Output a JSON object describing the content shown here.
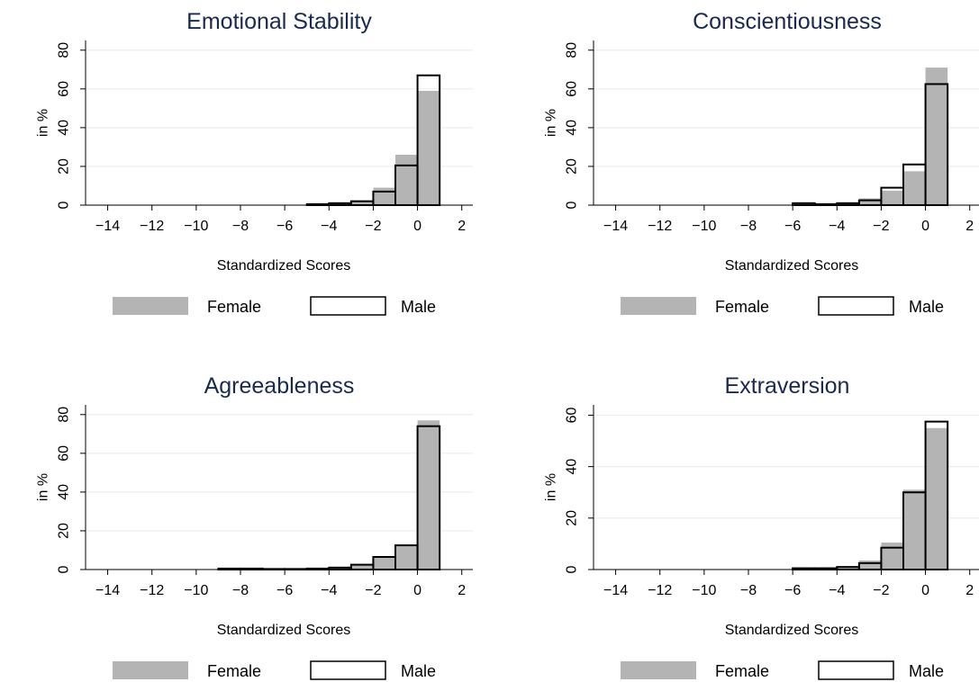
{
  "colors": {
    "female_fill": "#b4b4b4",
    "male_stroke": "#000000",
    "grid": "#e8eef2",
    "title": "#1a2a4f"
  },
  "chart_data": [
    {
      "type": "bar",
      "title": "Emotional Stability",
      "xlabel": "Standardized Scores",
      "ylabel": "in %",
      "xlim": [
        -15,
        2.5
      ],
      "ylim": [
        0,
        85
      ],
      "xticks": [
        -14,
        -12,
        -10,
        -8,
        -6,
        -4,
        -2,
        0,
        2
      ],
      "yticks": [
        0,
        20,
        40,
        60,
        80
      ],
      "grid": true,
      "legend": "bottom",
      "bin_starts": [
        -5,
        -4,
        -3,
        -2,
        -1,
        0
      ],
      "bin_width": 1,
      "series": [
        {
          "name": "Female",
          "values": [
            0.5,
            1,
            2.5,
            9,
            26,
            59
          ]
        },
        {
          "name": "Male",
          "values": [
            0.5,
            1,
            2,
            7,
            20.5,
            67
          ]
        }
      ]
    },
    {
      "type": "bar",
      "title": "Conscientiousness",
      "xlabel": "Standardized Scores",
      "ylabel": "in %",
      "xlim": [
        -15,
        2.5
      ],
      "ylim": [
        0,
        85
      ],
      "xticks": [
        -14,
        -12,
        -10,
        -8,
        -6,
        -4,
        -2,
        0,
        2
      ],
      "yticks": [
        0,
        20,
        40,
        60,
        80
      ],
      "grid": true,
      "legend": "bottom",
      "bin_starts": [
        -6,
        -5,
        -4,
        -3,
        -2,
        -1,
        0
      ],
      "bin_width": 1,
      "series": [
        {
          "name": "Female",
          "values": [
            0.5,
            0.5,
            1,
            3.5,
            7.5,
            17.5,
            71
          ]
        },
        {
          "name": "Male",
          "values": [
            1,
            0.5,
            1,
            2.5,
            9,
            21,
            62.5
          ]
        }
      ]
    },
    {
      "type": "bar",
      "title": "Agreeableness",
      "xlabel": "Standardized Scores",
      "ylabel": "in %",
      "xlim": [
        -15,
        2.5
      ],
      "ylim": [
        0,
        85
      ],
      "xticks": [
        -14,
        -12,
        -10,
        -8,
        -6,
        -4,
        -2,
        0,
        2
      ],
      "yticks": [
        0,
        20,
        40,
        60,
        80
      ],
      "grid": true,
      "legend": "bottom",
      "bin_starts": [
        -9,
        -8,
        -7,
        -6,
        -5,
        -4,
        -3,
        -2,
        -1,
        0
      ],
      "bin_width": 1,
      "series": [
        {
          "name": "Female",
          "values": [
            0.3,
            0.3,
            0.3,
            0.3,
            0.5,
            0.8,
            2.5,
            6,
            12.5,
            77
          ]
        },
        {
          "name": "Male",
          "values": [
            0.5,
            0.5,
            0.3,
            0.3,
            0.5,
            1,
            2.5,
            6.5,
            12.5,
            74
          ]
        }
      ]
    },
    {
      "type": "bar",
      "title": "Extraversion",
      "xlabel": "Standardized Scores",
      "ylabel": "in %",
      "xlim": [
        -15,
        2.5
      ],
      "ylim": [
        0,
        64
      ],
      "xticks": [
        -14,
        -12,
        -10,
        -8,
        -6,
        -4,
        -2,
        0,
        2
      ],
      "yticks": [
        0,
        20,
        40,
        60
      ],
      "grid": true,
      "legend": "bottom",
      "bin_starts": [
        -6,
        -5,
        -4,
        -3,
        -2,
        -1,
        0
      ],
      "bin_width": 1,
      "series": [
        {
          "name": "Female",
          "values": [
            0.3,
            0.5,
            1,
            3.5,
            10.5,
            31,
            55
          ]
        },
        {
          "name": "Male",
          "values": [
            0.5,
            0.5,
            1,
            2.5,
            8.5,
            30,
            57.5
          ]
        }
      ]
    }
  ]
}
